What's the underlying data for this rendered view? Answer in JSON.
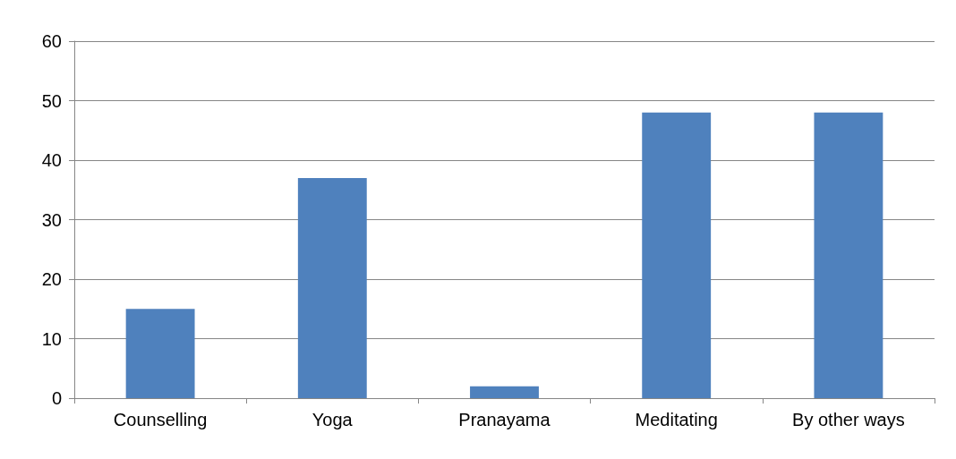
{
  "chart_data": {
    "type": "bar",
    "categories": [
      "Counselling",
      "Yoga",
      "Pranayama",
      "Meditating",
      "By other ways"
    ],
    "values": [
      15,
      37,
      2,
      48,
      48
    ],
    "color": "#4f81bd",
    "ylim": [
      0,
      60
    ],
    "yticks": [
      0,
      10,
      20,
      30,
      40,
      50,
      60
    ],
    "grid": "y"
  }
}
